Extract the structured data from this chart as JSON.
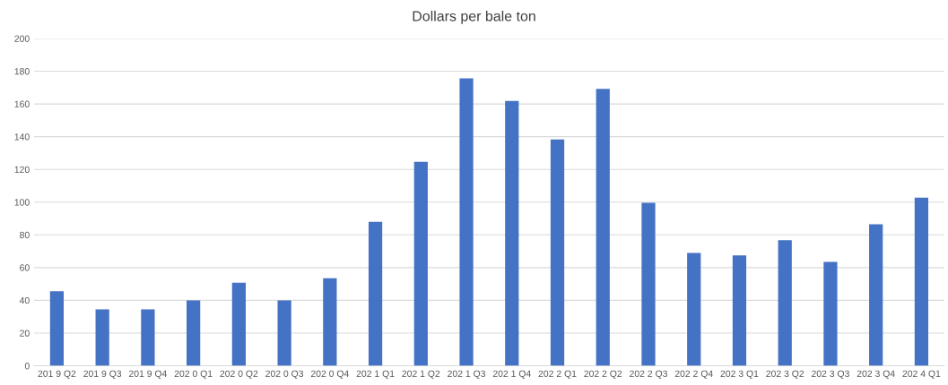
{
  "chart_data": {
    "type": "bar",
    "title": "Dollars per bale ton",
    "categories": [
      "201 9 Q2",
      "201 9 Q3",
      "201 9 Q4",
      "202 0 Q1",
      "202 0 Q2",
      "202 0 Q3",
      "202 0 Q4",
      "202 1 Q1",
      "202 1 Q2",
      "202 1 Q3",
      "202 1 Q4",
      "202 2 Q1",
      "202 2 Q2",
      "202 2 Q3",
      "202 2 Q4",
      "202 3 Q1",
      "202 3 Q2",
      "202 3 Q3",
      "202 3 Q4",
      "202 4 Q1"
    ],
    "values": [
      45.5,
      34.5,
      34.5,
      40,
      50.7,
      40,
      53.5,
      88,
      124.6,
      175.6,
      161.8,
      138.3,
      169.2,
      99.6,
      69,
      67.5,
      76.7,
      63.5,
      86.5,
      102.8
    ],
    "color": "#4472c4",
    "ylim": [
      0,
      200
    ],
    "yticks": [
      0,
      20,
      40,
      60,
      80,
      100,
      120,
      140,
      160,
      180,
      200
    ],
    "grid": "y"
  }
}
